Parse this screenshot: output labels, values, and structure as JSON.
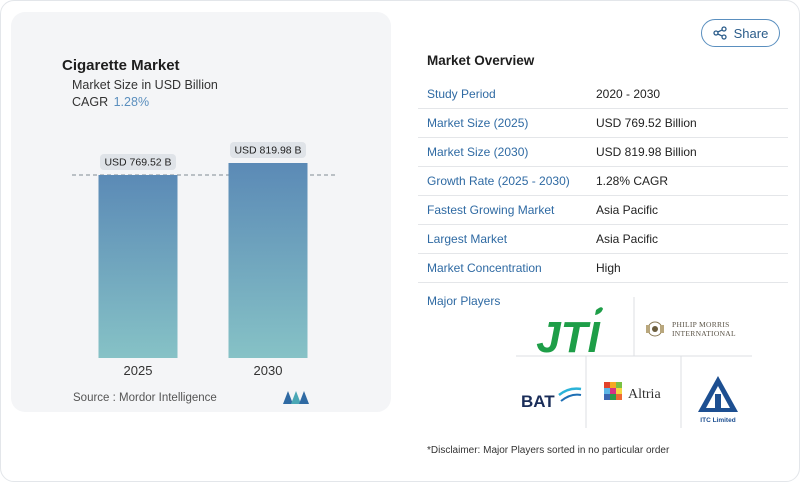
{
  "chart_card": {
    "title": "Cigarette Market",
    "subtitle": "Market Size in USD Billion",
    "cagr_label": "CAGR",
    "cagr_value": "1.28%",
    "source": "Source :  Mordor Intelligence"
  },
  "chart_data": {
    "type": "bar",
    "title": "Cigarette Market",
    "subtitle": "Market Size in USD Billion",
    "categories": [
      "2025",
      "2030"
    ],
    "values": [
      769.52,
      819.98
    ],
    "data_labels": [
      "USD 769.52 B",
      "USD 819.98 B"
    ],
    "ylim": [
      0,
      819.98
    ],
    "grid": false,
    "reference_line": "dashed line at 2025 value",
    "bar_gradient": [
      "#5b8ab6",
      "#86c2c6"
    ]
  },
  "share": {
    "label": "Share"
  },
  "overview": {
    "title": "Market Overview",
    "rows": [
      {
        "key": "Study Period",
        "value": "2020 - 2030"
      },
      {
        "key": "Market Size (2025)",
        "value": "USD 769.52 Billion"
      },
      {
        "key": "Market Size (2030)",
        "value": "USD 819.98 Billion"
      },
      {
        "key": "Growth Rate (2025 - 2030)",
        "value": "1.28% CAGR"
      },
      {
        "key": "Fastest Growing Market",
        "value": "Asia Pacific"
      },
      {
        "key": "Largest Market",
        "value": "Asia Pacific"
      },
      {
        "key": "Market Concentration",
        "value": "High"
      }
    ],
    "players_label": "Major Players",
    "players": {
      "jti": "JTI",
      "pmi_line1": "PHILIP MORRIS",
      "pmi_line2": "INTERNATIONAL",
      "bat": "BAT",
      "altria": "Altria",
      "itc": "ITC Limited"
    },
    "disclaimer": "*Disclaimer: Major Players sorted in no particular order"
  },
  "colors": {
    "accent": "#2f6aa3",
    "bar_top": "#5b8ab6",
    "bar_bottom": "#86c2c6",
    "jti_green": "#1e9e48",
    "itc_blue": "#1d4f91"
  }
}
